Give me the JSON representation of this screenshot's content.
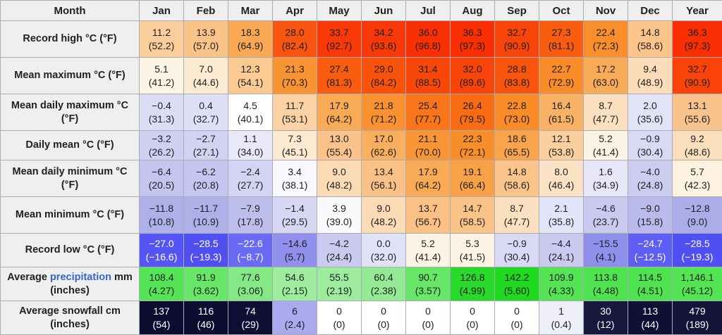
{
  "link_color": "#3366CC",
  "header_bg": "#EFEFEF",
  "chart_data": {
    "type": "table",
    "title": "Climate data table (monthly temperature, precipitation and snowfall normals/extremes)",
    "columns": [
      "Month",
      "Jan",
      "Feb",
      "Mar",
      "Apr",
      "May",
      "Jun",
      "Jul",
      "Aug",
      "Sep",
      "Oct",
      "Nov",
      "Dec",
      "Year"
    ],
    "rows": [
      {
        "label": "Record high °C (°F)",
        "cells": [
          {
            "t": "11.2",
            "b": "(52.2)",
            "bg": "#FBCE9B"
          },
          {
            "t": "13.9",
            "b": "(57.0)",
            "bg": "#FAC388"
          },
          {
            "t": "18.3",
            "b": "(64.9)",
            "bg": "#F9A953"
          },
          {
            "t": "28.0",
            "b": "(82.4)",
            "bg": "#F95510"
          },
          {
            "t": "33.7",
            "b": "(92.7)",
            "bg": "#F93A08"
          },
          {
            "t": "34.2",
            "b": "(93.6)",
            "bg": "#F93807"
          },
          {
            "t": "36.0",
            "b": "(96.8)",
            "bg": "#F93004"
          },
          {
            "t": "36.3",
            "b": "(97.3)",
            "bg": "#F92E03"
          },
          {
            "t": "32.7",
            "b": "(90.9)",
            "bg": "#F94409"
          },
          {
            "t": "27.3",
            "b": "(81.1)",
            "bg": "#F95C0E"
          },
          {
            "t": "22.4",
            "b": "(72.3)",
            "bg": "#F98E2B"
          },
          {
            "t": "14.8",
            "b": "(58.6)",
            "bg": "#FAC48A"
          },
          {
            "t": "36.3",
            "b": "(97.3)",
            "bg": "#F92E03"
          }
        ]
      },
      {
        "label": "Mean maximum °C (°F)",
        "cells": [
          {
            "t": "5.1",
            "b": "(41.2)",
            "bg": "#FDF4E6"
          },
          {
            "t": "7.0",
            "b": "(44.6)",
            "bg": "#FCEBD3"
          },
          {
            "t": "12.3",
            "b": "(54.1)",
            "bg": "#FACA92"
          },
          {
            "t": "21.3",
            "b": "(70.3)",
            "bg": "#F99432"
          },
          {
            "t": "27.4",
            "b": "(81.3)",
            "bg": "#F95C0E"
          },
          {
            "t": "29.0",
            "b": "(84.2)",
            "bg": "#F9520B"
          },
          {
            "t": "31.4",
            "b": "(88.5)",
            "bg": "#F9470A"
          },
          {
            "t": "32.0",
            "b": "(89.6)",
            "bg": "#F94409"
          },
          {
            "t": "28.8",
            "b": "(83.8)",
            "bg": "#F9540C"
          },
          {
            "t": "22.7",
            "b": "(72.9)",
            "bg": "#F98C29"
          },
          {
            "t": "17.2",
            "b": "(63.0)",
            "bg": "#F9AC58"
          },
          {
            "t": "9.4",
            "b": "(48.9)",
            "bg": "#FBDDBA"
          },
          {
            "t": "32.7",
            "b": "(90.9)",
            "bg": "#F94309"
          }
        ]
      },
      {
        "label": "Mean daily maximum °C (°F)",
        "cells": [
          {
            "t": "−0.4",
            "b": "(31.3)",
            "bg": "#DCDCF5"
          },
          {
            "t": "0.4",
            "b": "(32.7)",
            "bg": "#DFDFF6"
          },
          {
            "t": "4.5",
            "b": "(40.1)",
            "bg": "#FFFFFF"
          },
          {
            "t": "11.7",
            "b": "(53.1)",
            "bg": "#FBD2A4"
          },
          {
            "t": "17.9",
            "b": "(64.2)",
            "bg": "#F9AA55"
          },
          {
            "t": "21.8",
            "b": "(71.2)",
            "bg": "#F99130"
          },
          {
            "t": "25.4",
            "b": "(77.7)",
            "bg": "#F97519"
          },
          {
            "t": "26.4",
            "b": "(79.5)",
            "bg": "#F96C13"
          },
          {
            "t": "22.8",
            "b": "(73.0)",
            "bg": "#F98B28"
          },
          {
            "t": "16.4",
            "b": "(61.5)",
            "bg": "#F9B166"
          },
          {
            "t": "8.7",
            "b": "(47.7)",
            "bg": "#FBE0C0"
          },
          {
            "t": "2.0",
            "b": "(35.6)",
            "bg": "#E3E3F8"
          },
          {
            "t": "13.1",
            "b": "(55.6)",
            "bg": "#FAC28D"
          }
        ]
      },
      {
        "label": "Daily mean °C (°F)",
        "cells": [
          {
            "t": "−3.2",
            "b": "(26.2)",
            "bg": "#CFCFF2"
          },
          {
            "t": "−2.7",
            "b": "(27.1)",
            "bg": "#D2D2F3"
          },
          {
            "t": "1.1",
            "b": "(34.0)",
            "bg": "#E8E8F9"
          },
          {
            "t": "7.3",
            "b": "(45.1)",
            "bg": "#FCEAD1"
          },
          {
            "t": "13.0",
            "b": "(55.4)",
            "bg": "#FAC38B"
          },
          {
            "t": "17.0",
            "b": "(62.6)",
            "bg": "#F9AF5D"
          },
          {
            "t": "21.1",
            "b": "(70.0)",
            "bg": "#F99534"
          },
          {
            "t": "22.3",
            "b": "(72.1)",
            "bg": "#F98D2A"
          },
          {
            "t": "18.6",
            "b": "(65.5)",
            "bg": "#F9A44B"
          },
          {
            "t": "12.1",
            "b": "(53.8)",
            "bg": "#FBCF9D"
          },
          {
            "t": "5.2",
            "b": "(41.4)",
            "bg": "#FDF3E5"
          },
          {
            "t": "−0.9",
            "b": "(30.4)",
            "bg": "#D9D9F5"
          },
          {
            "t": "9.2",
            "b": "(48.6)",
            "bg": "#FBDEBB"
          }
        ]
      },
      {
        "label": "Mean daily minimum °C (°F)",
        "cells": [
          {
            "t": "−6.4",
            "b": "(20.5)",
            "bg": "#C4C4EF"
          },
          {
            "t": "−6.2",
            "b": "(20.8)",
            "bg": "#C5C5EF"
          },
          {
            "t": "−2.4",
            "b": "(27.7)",
            "bg": "#D3D3F3"
          },
          {
            "t": "3.4",
            "b": "(38.1)",
            "bg": "#F7F7FC"
          },
          {
            "t": "9.0",
            "b": "(48.2)",
            "bg": "#FBDBB6"
          },
          {
            "t": "13.4",
            "b": "(56.1)",
            "bg": "#FAC187"
          },
          {
            "t": "17.9",
            "b": "(64.2)",
            "bg": "#F9AA55"
          },
          {
            "t": "19.1",
            "b": "(66.4)",
            "bg": "#F9A147"
          },
          {
            "t": "14.8",
            "b": "(58.6)",
            "bg": "#FAC48A"
          },
          {
            "t": "8.0",
            "b": "(46.4)",
            "bg": "#FBE2C4"
          },
          {
            "t": "1.6",
            "b": "(34.9)",
            "bg": "#E6E6F8"
          },
          {
            "t": "−4.0",
            "b": "(24.8)",
            "bg": "#CCCCF1"
          },
          {
            "t": "5.7",
            "b": "(42.3)",
            "bg": "#FDF1E0"
          }
        ]
      },
      {
        "label": "Mean minimum °C (°F)",
        "cells": [
          {
            "t": "−11.8",
            "b": "(10.8)",
            "bg": "#AFAFEA"
          },
          {
            "t": "−11.7",
            "b": "(10.9)",
            "bg": "#AFAFEA"
          },
          {
            "t": "−7.9",
            "b": "(17.8)",
            "bg": "#BEBEED"
          },
          {
            "t": "−1.4",
            "b": "(29.5)",
            "bg": "#D7D7F4"
          },
          {
            "t": "3.9",
            "b": "(39.0)",
            "bg": "#FAFAFD"
          },
          {
            "t": "9.0",
            "b": "(48.2)",
            "bg": "#FBDBB6"
          },
          {
            "t": "13.7",
            "b": "(56.7)",
            "bg": "#FAC085"
          },
          {
            "t": "14.7",
            "b": "(58.5)",
            "bg": "#FAC489"
          },
          {
            "t": "8.7",
            "b": "(47.7)",
            "bg": "#FBE0C0"
          },
          {
            "t": "2.1",
            "b": "(35.8)",
            "bg": "#E4E4F8"
          },
          {
            "t": "−4.6",
            "b": "(23.7)",
            "bg": "#CACAF1"
          },
          {
            "t": "−9.0",
            "b": "(15.8)",
            "bg": "#BABAEC"
          },
          {
            "t": "−12.8",
            "b": "(9.0)",
            "bg": "#ACACE9"
          }
        ]
      },
      {
        "label": "Record low °C (°F)",
        "cells": [
          {
            "t": "−27.0",
            "b": "(−16.6)",
            "bg": "#5555F3",
            "fg": "#FFFFFF"
          },
          {
            "t": "−28.5",
            "b": "(−19.3)",
            "bg": "#5050F2",
            "fg": "#FFFFFF"
          },
          {
            "t": "−22.6",
            "b": "(−8.7)",
            "bg": "#6A6AF5",
            "fg": "#FFFFFF"
          },
          {
            "t": "−14.6",
            "b": "(5.7)",
            "bg": "#9191ED"
          },
          {
            "t": "−4.2",
            "b": "(24.4)",
            "bg": "#CBCBF1"
          },
          {
            "t": "0.0",
            "b": "(32.0)",
            "bg": "#E1E1F7"
          },
          {
            "t": "5.2",
            "b": "(41.4)",
            "bg": "#FDF3E5"
          },
          {
            "t": "5.3",
            "b": "(41.5)",
            "bg": "#FDF3E4"
          },
          {
            "t": "−0.9",
            "b": "(30.4)",
            "bg": "#D9D9F5"
          },
          {
            "t": "−4.4",
            "b": "(24.1)",
            "bg": "#CACAF1"
          },
          {
            "t": "−15.5",
            "b": "(4.1)",
            "bg": "#8F8FEC"
          },
          {
            "t": "−24.7",
            "b": "(−12.5)",
            "bg": "#5E5EF4",
            "fg": "#FFFFFF"
          },
          {
            "t": "−28.5",
            "b": "(−19.3)",
            "bg": "#5050F2",
            "fg": "#FFFFFF"
          }
        ]
      },
      {
        "label": "Average precipitation mm (inches)",
        "label_parts": [
          {
            "text": "Average "
          },
          {
            "text": "precipitation",
            "link": true
          },
          {
            "text": " mm (inches)"
          }
        ],
        "cells": [
          {
            "t": "108.4",
            "b": "(4.27)",
            "bg": "#55E455"
          },
          {
            "t": "91.9",
            "b": "(3.62)",
            "bg": "#67E667"
          },
          {
            "t": "77.6",
            "b": "(3.06)",
            "bg": "#84E984"
          },
          {
            "t": "54.6",
            "b": "(2.15)",
            "bg": "#9EEC9E"
          },
          {
            "t": "55.5",
            "b": "(2.19)",
            "bg": "#9DEC9D"
          },
          {
            "t": "60.4",
            "b": "(2.38)",
            "bg": "#94EA94"
          },
          {
            "t": "90.7",
            "b": "(3.57)",
            "bg": "#67E667"
          },
          {
            "t": "126.8",
            "b": "(4.99)",
            "bg": "#2ADA2A"
          },
          {
            "t": "142.2",
            "b": "(5.60)",
            "bg": "#1ED91E"
          },
          {
            "t": "109.9",
            "b": "(4.33)",
            "bg": "#55E455"
          },
          {
            "t": "113.8",
            "b": "(4.48)",
            "bg": "#50E350"
          },
          {
            "t": "114.5",
            "b": "(4.51)",
            "bg": "#4FE34F"
          },
          {
            "t": "1,146.1",
            "b": "(45.12)",
            "bg": "#52E452"
          }
        ]
      },
      {
        "label": "Average snowfall cm (inches)",
        "cells": [
          {
            "t": "137",
            "b": "(54)",
            "bg": "#0C0C30",
            "fg": "#FFFFFF"
          },
          {
            "t": "116",
            "b": "(46)",
            "bg": "#0C0C30",
            "fg": "#FFFFFF"
          },
          {
            "t": "74",
            "b": "(29)",
            "bg": "#0E0E34",
            "fg": "#FFFFFF"
          },
          {
            "t": "6",
            "b": "(2.4)",
            "bg": "#AAAAEE"
          },
          {
            "t": "0",
            "b": "(0)",
            "bg": "#FFFFFF"
          },
          {
            "t": "0",
            "b": "(0)",
            "bg": "#FFFFFF"
          },
          {
            "t": "0",
            "b": "(0)",
            "bg": "#FFFFFF"
          },
          {
            "t": "0",
            "b": "(0)",
            "bg": "#FFFFFF"
          },
          {
            "t": "0",
            "b": "(0)",
            "bg": "#FFFFFF"
          },
          {
            "t": "1",
            "b": "(0.4)",
            "bg": "#EEEEF8"
          },
          {
            "t": "30",
            "b": "(12)",
            "bg": "#18183E",
            "fg": "#FFFFFF"
          },
          {
            "t": "113",
            "b": "(44)",
            "bg": "#101035",
            "fg": "#FFFFFF"
          },
          {
            "t": "479",
            "b": "(189)",
            "bg": "#14143A",
            "fg": "#FFFFFF"
          }
        ]
      }
    ]
  }
}
